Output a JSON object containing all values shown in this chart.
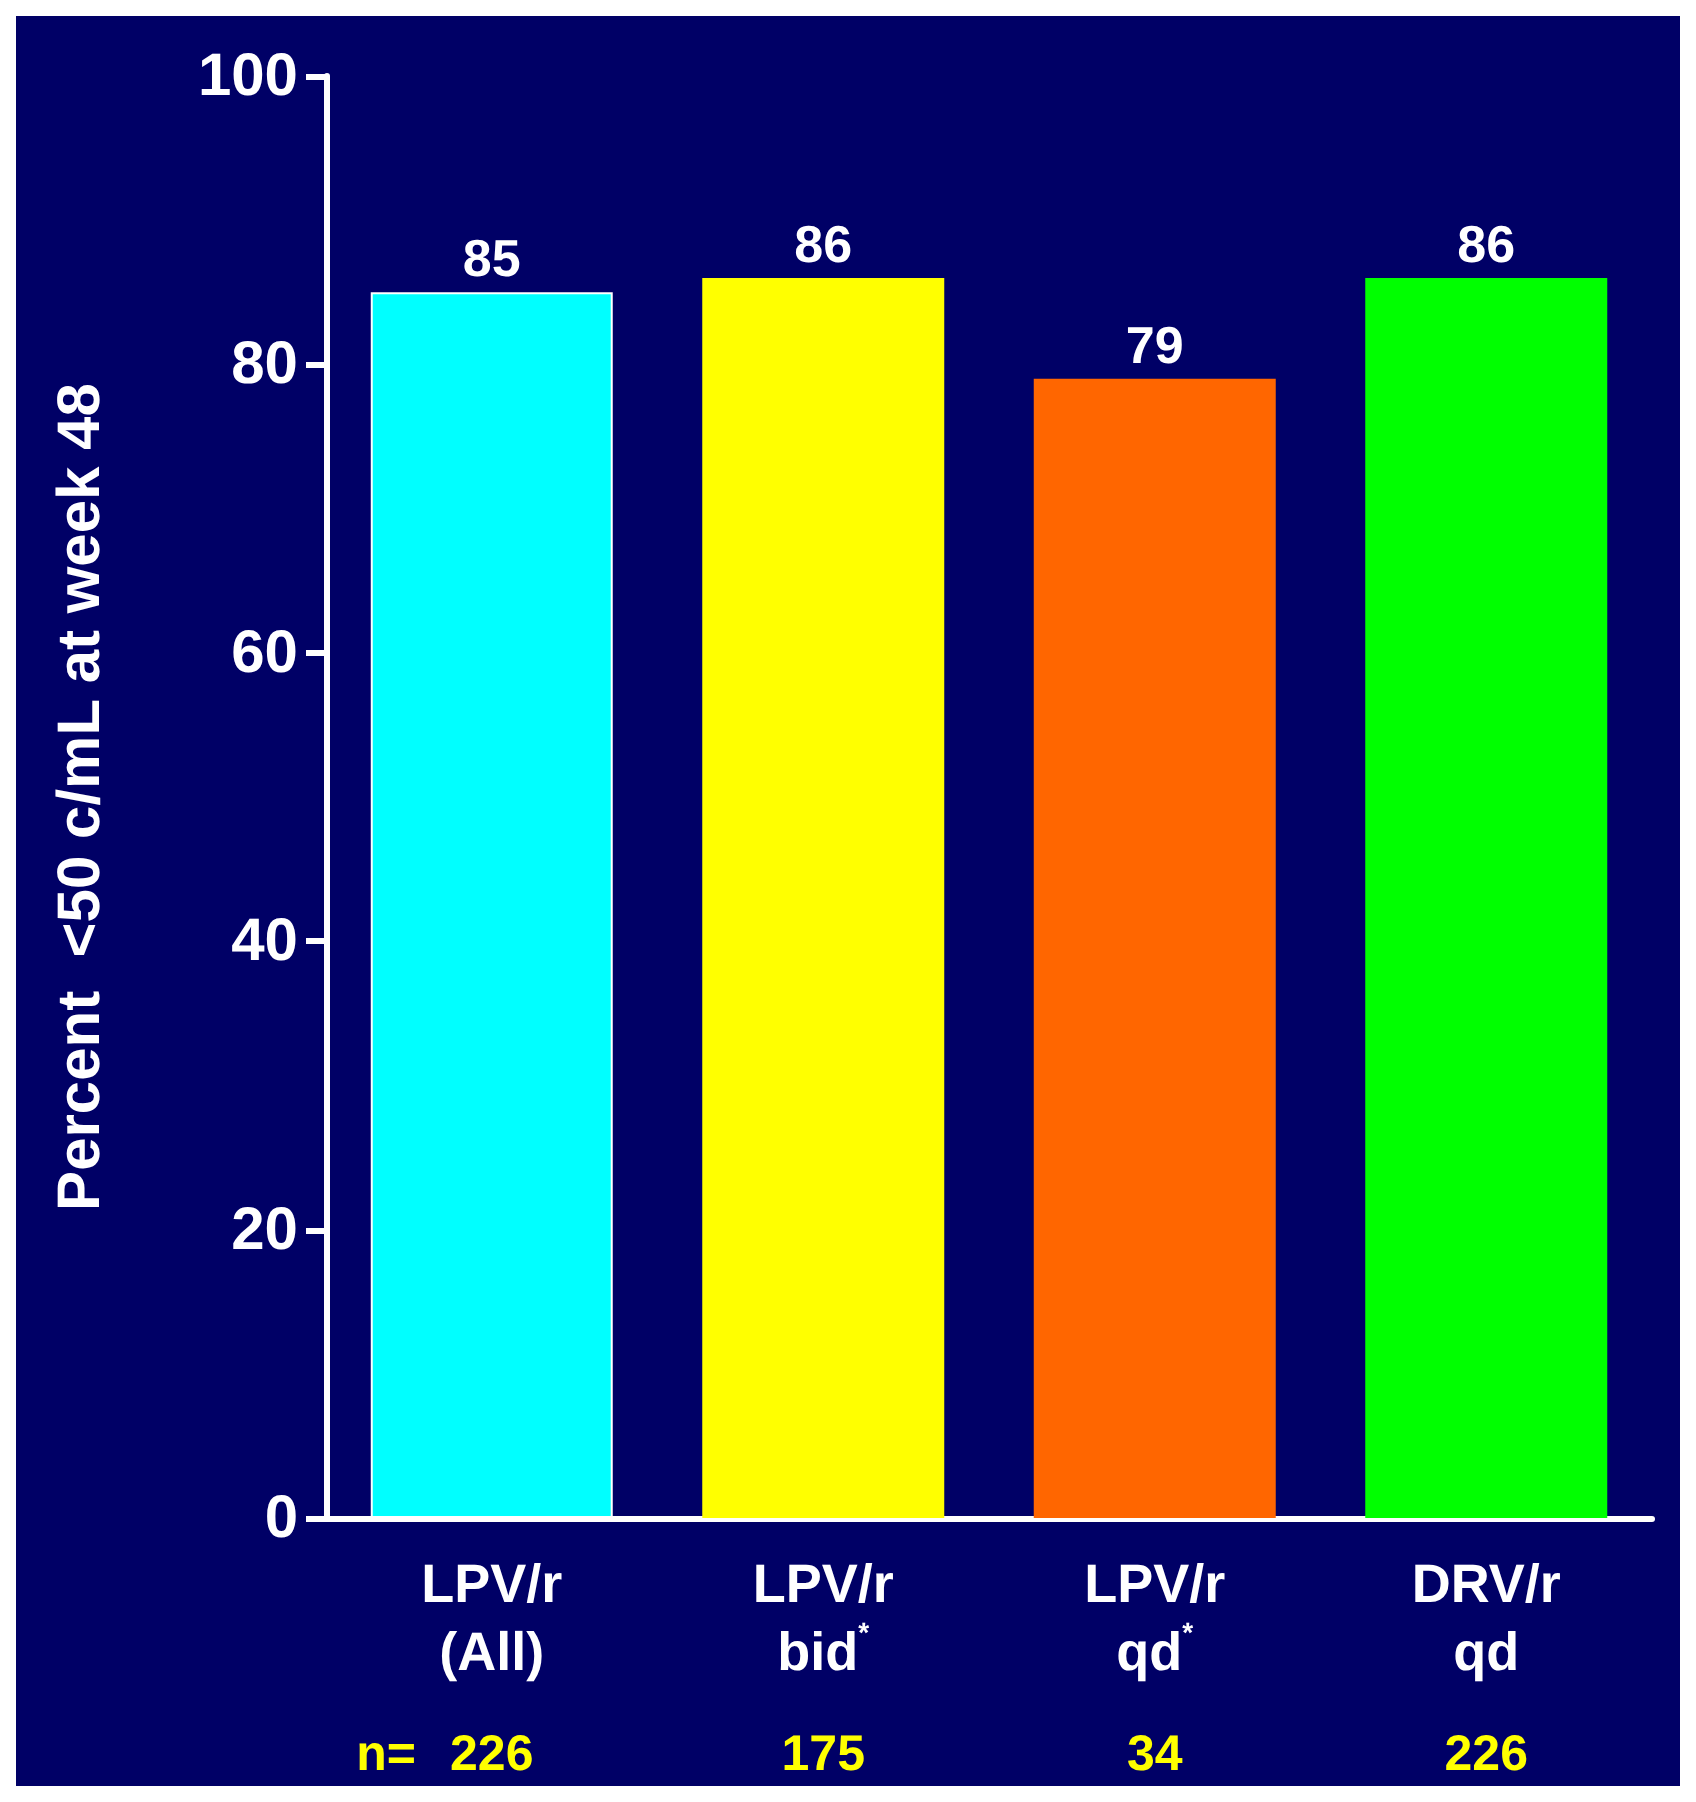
{
  "chart_data": {
    "type": "bar",
    "ylabel": "Percent  <50 c/mL at week 48",
    "categories": [
      "LPV/r\n(All)",
      "LPV/r\nbid$^{*}$",
      "LPV/r\nqd$^{*}$",
      "DRV/r\nqd"
    ],
    "values": [
      85,
      86,
      79,
      86
    ],
    "colors": [
      "#00ffff",
      "#ffff00",
      "#ff6600",
      "#00ff00"
    ],
    "ylim": [
      0,
      100
    ],
    "yticks": [
      0,
      20,
      40,
      60,
      80,
      100
    ],
    "grid": false,
    "data_labels": true,
    "annotations": [
      "n=",
      "226",
      "175",
      "34",
      "226"
    ]
  }
}
